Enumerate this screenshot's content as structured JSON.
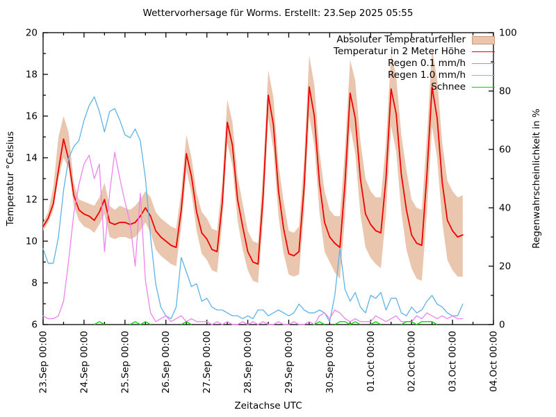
{
  "title": "Wettervorhersage für Worms. Erstellt: 23.Sep 2025 05:55",
  "chart_data": {
    "type": "line",
    "grid": false,
    "legend_position": "top-right-inside",
    "x_axis": {
      "label": "Zeitachse UTC",
      "tick_labels": [
        "23.Sep 00:00",
        "24.Sep 00:00",
        "25.Sep 00:00",
        "26.Sep 00:00",
        "27.Sep 00:00",
        "28.Sep 00:00",
        "29.Sep 00:00",
        "30.Sep 00:00",
        "01.Oct 00:00",
        "02.Oct 00:00",
        "03.Oct 00:00",
        "04.Oct 00:00"
      ],
      "days_total": 11,
      "minor_tick_hours": 12
    },
    "y_left": {
      "label": "Temperatur °Celsius",
      "min": 6,
      "max": 20,
      "ticks": [
        6,
        8,
        10,
        12,
        14,
        16,
        18,
        20
      ],
      "minor_step": 1
    },
    "y_right": {
      "label": "Regenwahrscheinlichkeit in %",
      "min": 0,
      "max": 100,
      "ticks": [
        0,
        20,
        40,
        60,
        80,
        100
      ],
      "minor_step": 10
    },
    "sample_interval_hours": 3,
    "start_label": "23.Sep 00:00",
    "series": [
      {
        "name": "Absoluter Temperaturfehler",
        "type": "band",
        "axis": "left",
        "color": "#eac6ae",
        "border": "#c89a79",
        "low": [
          10.5,
          10.9,
          11.5,
          13.0,
          14.0,
          13.5,
          11.7,
          11.0,
          10.7,
          10.6,
          10.4,
          10.8,
          11.3,
          10.2,
          10.1,
          10.2,
          10.2,
          10.1,
          10.2,
          10.5,
          10.9,
          10.4,
          9.6,
          9.3,
          9.1,
          8.9,
          8.8,
          10.7,
          13.4,
          12.3,
          10.5,
          9.4,
          9.1,
          8.6,
          8.5,
          10.9,
          14.7,
          13.6,
          11.0,
          9.6,
          8.6,
          8.1,
          8.0,
          11.1,
          15.9,
          14.4,
          11.2,
          9.4,
          8.4,
          8.3,
          8.4,
          11.4,
          16.0,
          14.6,
          11.4,
          9.5,
          9.0,
          8.5,
          8.2,
          11.2,
          15.5,
          14.2,
          11.3,
          9.7,
          9.2,
          8.9,
          8.7,
          11.3,
          15.5,
          14.3,
          11.4,
          9.6,
          8.7,
          8.2,
          8.1,
          11.4,
          15.5,
          14.0,
          10.9,
          9.1,
          8.6,
          8.3,
          8.3
        ],
        "high": [
          10.9,
          11.4,
          12.6,
          15.0,
          16.0,
          15.2,
          12.8,
          12.0,
          11.9,
          11.8,
          11.7,
          12.1,
          12.8,
          11.7,
          11.5,
          11.7,
          11.6,
          11.5,
          11.7,
          12.0,
          12.4,
          12.1,
          11.4,
          11.1,
          10.9,
          10.7,
          10.6,
          12.4,
          15.1,
          14.0,
          12.3,
          11.4,
          11.1,
          10.6,
          10.5,
          12.8,
          16.8,
          15.7,
          13.1,
          11.8,
          10.5,
          10.0,
          9.9,
          13.4,
          18.2,
          16.9,
          13.7,
          11.9,
          10.5,
          10.4,
          10.7,
          13.9,
          18.9,
          17.5,
          14.3,
          12.4,
          11.5,
          11.2,
          11.2,
          14.4,
          18.7,
          17.7,
          14.8,
          13.0,
          12.4,
          12.1,
          12.1,
          14.7,
          19.0,
          17.9,
          15.1,
          13.4,
          12.0,
          11.6,
          11.5,
          15.0,
          19.2,
          17.8,
          14.7,
          12.9,
          12.4,
          12.1,
          12.2
        ]
      },
      {
        "name": "Temperatur in 2 Meter Höhe",
        "type": "line",
        "axis": "left",
        "color": "#ee0000",
        "width": 1.8,
        "values": [
          10.7,
          11.1,
          11.8,
          13.4,
          14.9,
          13.9,
          12.2,
          11.5,
          11.3,
          11.2,
          11.0,
          11.4,
          12.0,
          10.9,
          10.8,
          10.9,
          10.9,
          10.8,
          10.9,
          11.2,
          11.6,
          11.2,
          10.5,
          10.2,
          10.0,
          9.8,
          9.7,
          11.5,
          14.2,
          13.1,
          11.4,
          10.4,
          10.1,
          9.6,
          9.5,
          11.8,
          15.7,
          14.6,
          12.0,
          10.7,
          9.5,
          9.0,
          8.9,
          12.2,
          17.0,
          15.6,
          12.4,
          10.6,
          9.4,
          9.3,
          9.5,
          12.6,
          17.4,
          16.0,
          12.8,
          10.9,
          10.2,
          9.9,
          9.7,
          12.8,
          17.1,
          15.9,
          13.0,
          11.3,
          10.8,
          10.5,
          10.4,
          13.0,
          17.3,
          16.1,
          13.2,
          11.5,
          10.3,
          9.9,
          9.8,
          13.2,
          17.4,
          15.9,
          12.8,
          11.0,
          10.5,
          10.2,
          10.3
        ]
      },
      {
        "name": "Regen 0.1 mm/h",
        "type": "line",
        "axis": "right",
        "color": "#5cb3e8",
        "width": 1.3,
        "values": [
          26,
          21,
          21,
          30,
          46,
          57,
          61,
          63,
          70,
          75,
          78,
          73,
          66,
          73,
          74,
          70,
          65,
          64,
          67,
          63,
          50,
          30,
          14,
          6,
          3,
          2,
          6,
          23,
          18,
          13,
          14,
          8,
          9,
          6,
          5,
          5,
          4,
          3,
          3,
          2,
          3,
          2,
          5,
          5,
          3,
          4,
          5,
          4,
          3,
          4,
          7,
          5,
          4,
          4,
          5,
          4,
          1,
          10,
          26,
          12,
          8,
          11,
          6,
          4,
          10,
          9,
          11,
          5,
          9,
          9,
          4,
          3,
          6,
          4,
          5,
          8,
          10,
          7,
          6,
          4,
          3,
          3,
          7
        ]
      },
      {
        "name": "Regen 1.0 mm/h",
        "type": "line",
        "axis": "right",
        "color": "#ee82ee",
        "width": 1.3,
        "values": [
          3,
          2,
          2,
          3,
          8,
          22,
          38,
          48,
          55,
          58,
          50,
          55,
          25,
          45,
          59,
          50,
          42,
          35,
          20,
          45,
          15,
          4,
          1,
          2,
          3,
          1,
          2,
          3,
          1,
          2,
          1,
          1,
          1,
          0,
          1,
          0,
          1,
          0,
          0,
          1,
          0,
          1,
          0,
          1,
          0,
          0,
          1,
          0,
          0,
          1,
          0,
          0,
          1,
          0,
          3,
          4,
          2,
          5,
          4,
          2,
          1,
          2,
          1,
          1,
          1,
          3,
          2,
          1,
          2,
          3,
          1,
          1,
          1,
          3,
          2,
          4,
          3,
          2,
          3,
          2,
          3,
          2,
          2
        ]
      },
      {
        "name": "Schnee",
        "type": "line-segments",
        "axis": "right",
        "color": "#00d500",
        "width": 1.3,
        "values": [
          0,
          0,
          0,
          0,
          0,
          0,
          0,
          0,
          0,
          0,
          0,
          1,
          0,
          0,
          0,
          0,
          0,
          0,
          1,
          0,
          1,
          0,
          0,
          0,
          0,
          0,
          0,
          0,
          1,
          0,
          0,
          0,
          0,
          0,
          0,
          0,
          0,
          0,
          0,
          0,
          0,
          0,
          0,
          0,
          0,
          0,
          0,
          0,
          0,
          0,
          0,
          0,
          0,
          0,
          1,
          0,
          0,
          0,
          1,
          1,
          0,
          1,
          0,
          0,
          0,
          1,
          0,
          0,
          0,
          0,
          0,
          1,
          1,
          0,
          1,
          1,
          1,
          0,
          0,
          0,
          0,
          0,
          0
        ]
      }
    ]
  }
}
